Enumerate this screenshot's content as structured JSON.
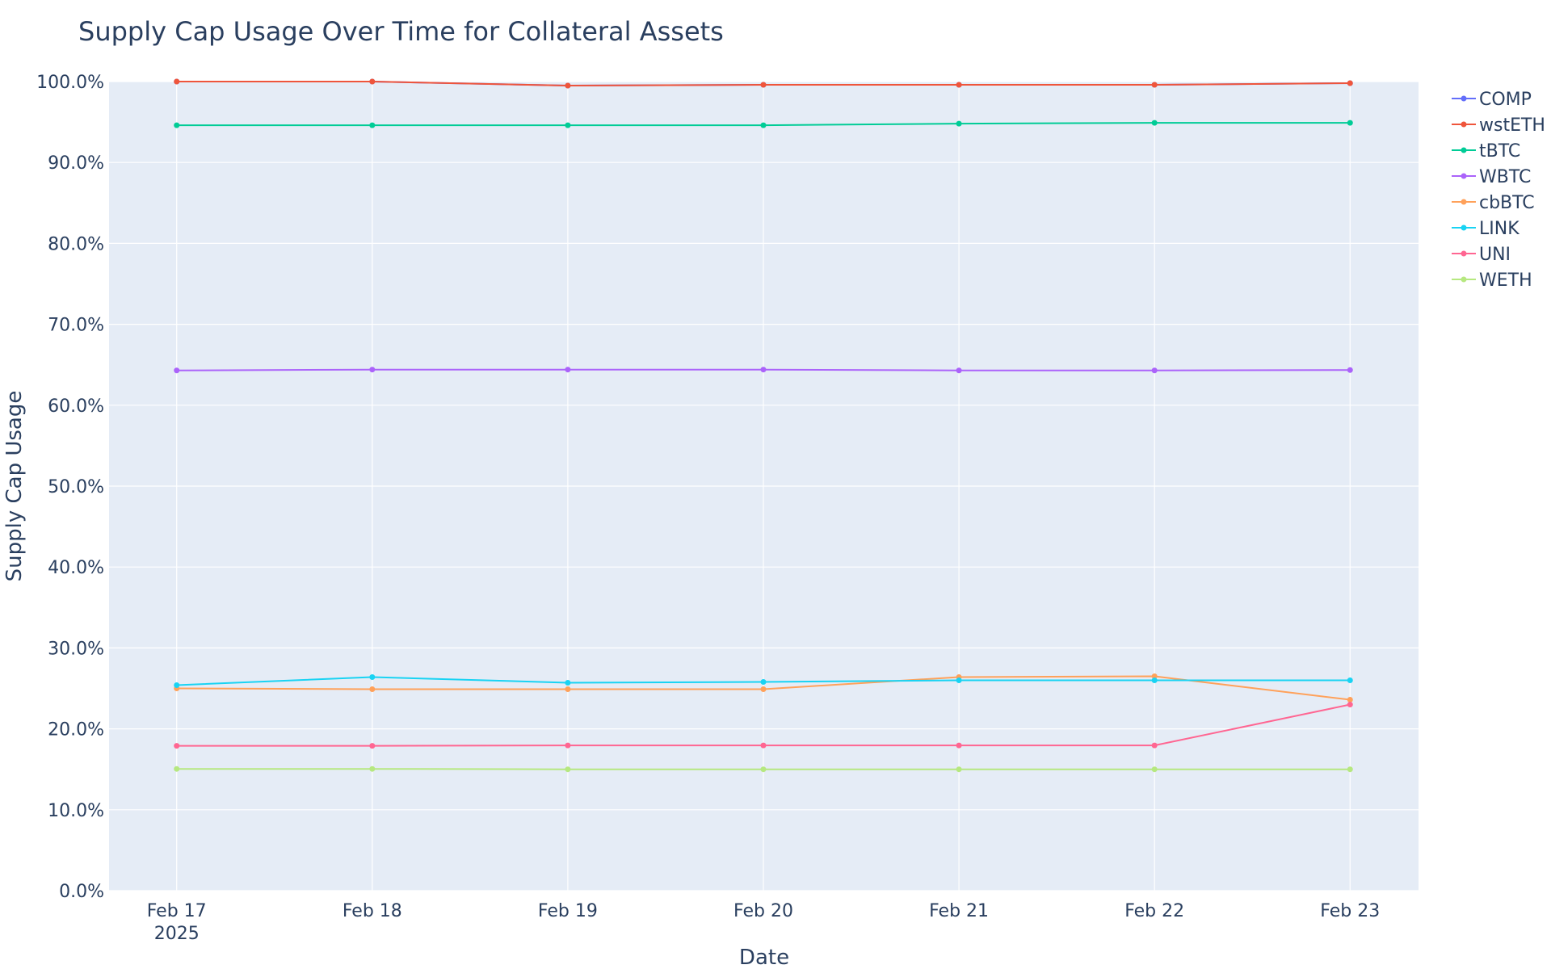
{
  "chart_data": {
    "type": "line",
    "title": "Supply Cap Usage Over Time for Collateral Assets",
    "x_label": "Date",
    "y_label": "Supply Cap Usage",
    "x": [
      "2025-02-17",
      "2025-02-18",
      "2025-02-19",
      "2025-02-20",
      "2025-02-21",
      "2025-02-22",
      "2025-02-23"
    ],
    "xlim": [
      "2025-02-16T15:42:00Z",
      "2025-02-23T08:24:00Z"
    ],
    "xticks": [
      {
        "value": "2025-02-17",
        "label": "Feb 17\n2025"
      },
      {
        "value": "2025-02-18",
        "label": "Feb 18"
      },
      {
        "value": "2025-02-19",
        "label": "Feb 19"
      },
      {
        "value": "2025-02-20",
        "label": "Feb 20"
      },
      {
        "value": "2025-02-21",
        "label": "Feb 21"
      },
      {
        "value": "2025-02-22",
        "label": "Feb 22"
      },
      {
        "value": "2025-02-23",
        "label": "Feb 23"
      }
    ],
    "ylim": [
      0,
      100
    ],
    "yticks": [
      {
        "value": 0,
        "label": "0.0%"
      },
      {
        "value": 10,
        "label": "10.0%"
      },
      {
        "value": 20,
        "label": "20.0%"
      },
      {
        "value": 30,
        "label": "30.0%"
      },
      {
        "value": 40,
        "label": "40.0%"
      },
      {
        "value": 50,
        "label": "50.0%"
      },
      {
        "value": 60,
        "label": "60.0%"
      },
      {
        "value": 70,
        "label": "70.0%"
      },
      {
        "value": 80,
        "label": "80.0%"
      },
      {
        "value": 90,
        "label": "90.0%"
      },
      {
        "value": 100,
        "label": "100.0%"
      }
    ],
    "grid": true,
    "legend": "right",
    "series": [
      {
        "name": "COMP",
        "color": "#636efa",
        "values": [
          100,
          100,
          99.5,
          99.6,
          99.6,
          99.6,
          99.8
        ]
      },
      {
        "name": "wstETH",
        "color": "#EF553B",
        "values": [
          100,
          100,
          99.5,
          99.6,
          99.6,
          99.6,
          99.8
        ]
      },
      {
        "name": "tBTC",
        "color": "#00cc96",
        "values": [
          94.6,
          94.6,
          94.6,
          94.6,
          94.8,
          94.9,
          94.9
        ]
      },
      {
        "name": "WBTC",
        "color": "#ab63fa",
        "values": [
          64.3,
          64.4,
          64.4,
          64.4,
          64.3,
          64.3,
          64.35
        ]
      },
      {
        "name": "cbBTC",
        "color": "#FFA15A",
        "values": [
          25.0,
          24.9,
          24.9,
          24.9,
          26.4,
          26.5,
          23.6
        ]
      },
      {
        "name": "LINK",
        "color": "#19d3f3",
        "values": [
          25.4,
          26.4,
          25.7,
          25.8,
          26.0,
          26.0,
          26.0
        ]
      },
      {
        "name": "UNI",
        "color": "#FF6692",
        "values": [
          17.9,
          17.9,
          17.95,
          17.95,
          17.95,
          17.95,
          23.0
        ]
      },
      {
        "name": "WETH",
        "color": "#B6E880",
        "values": [
          15.05,
          15.05,
          15.0,
          15.0,
          15.0,
          15.0,
          15.0
        ]
      }
    ]
  }
}
